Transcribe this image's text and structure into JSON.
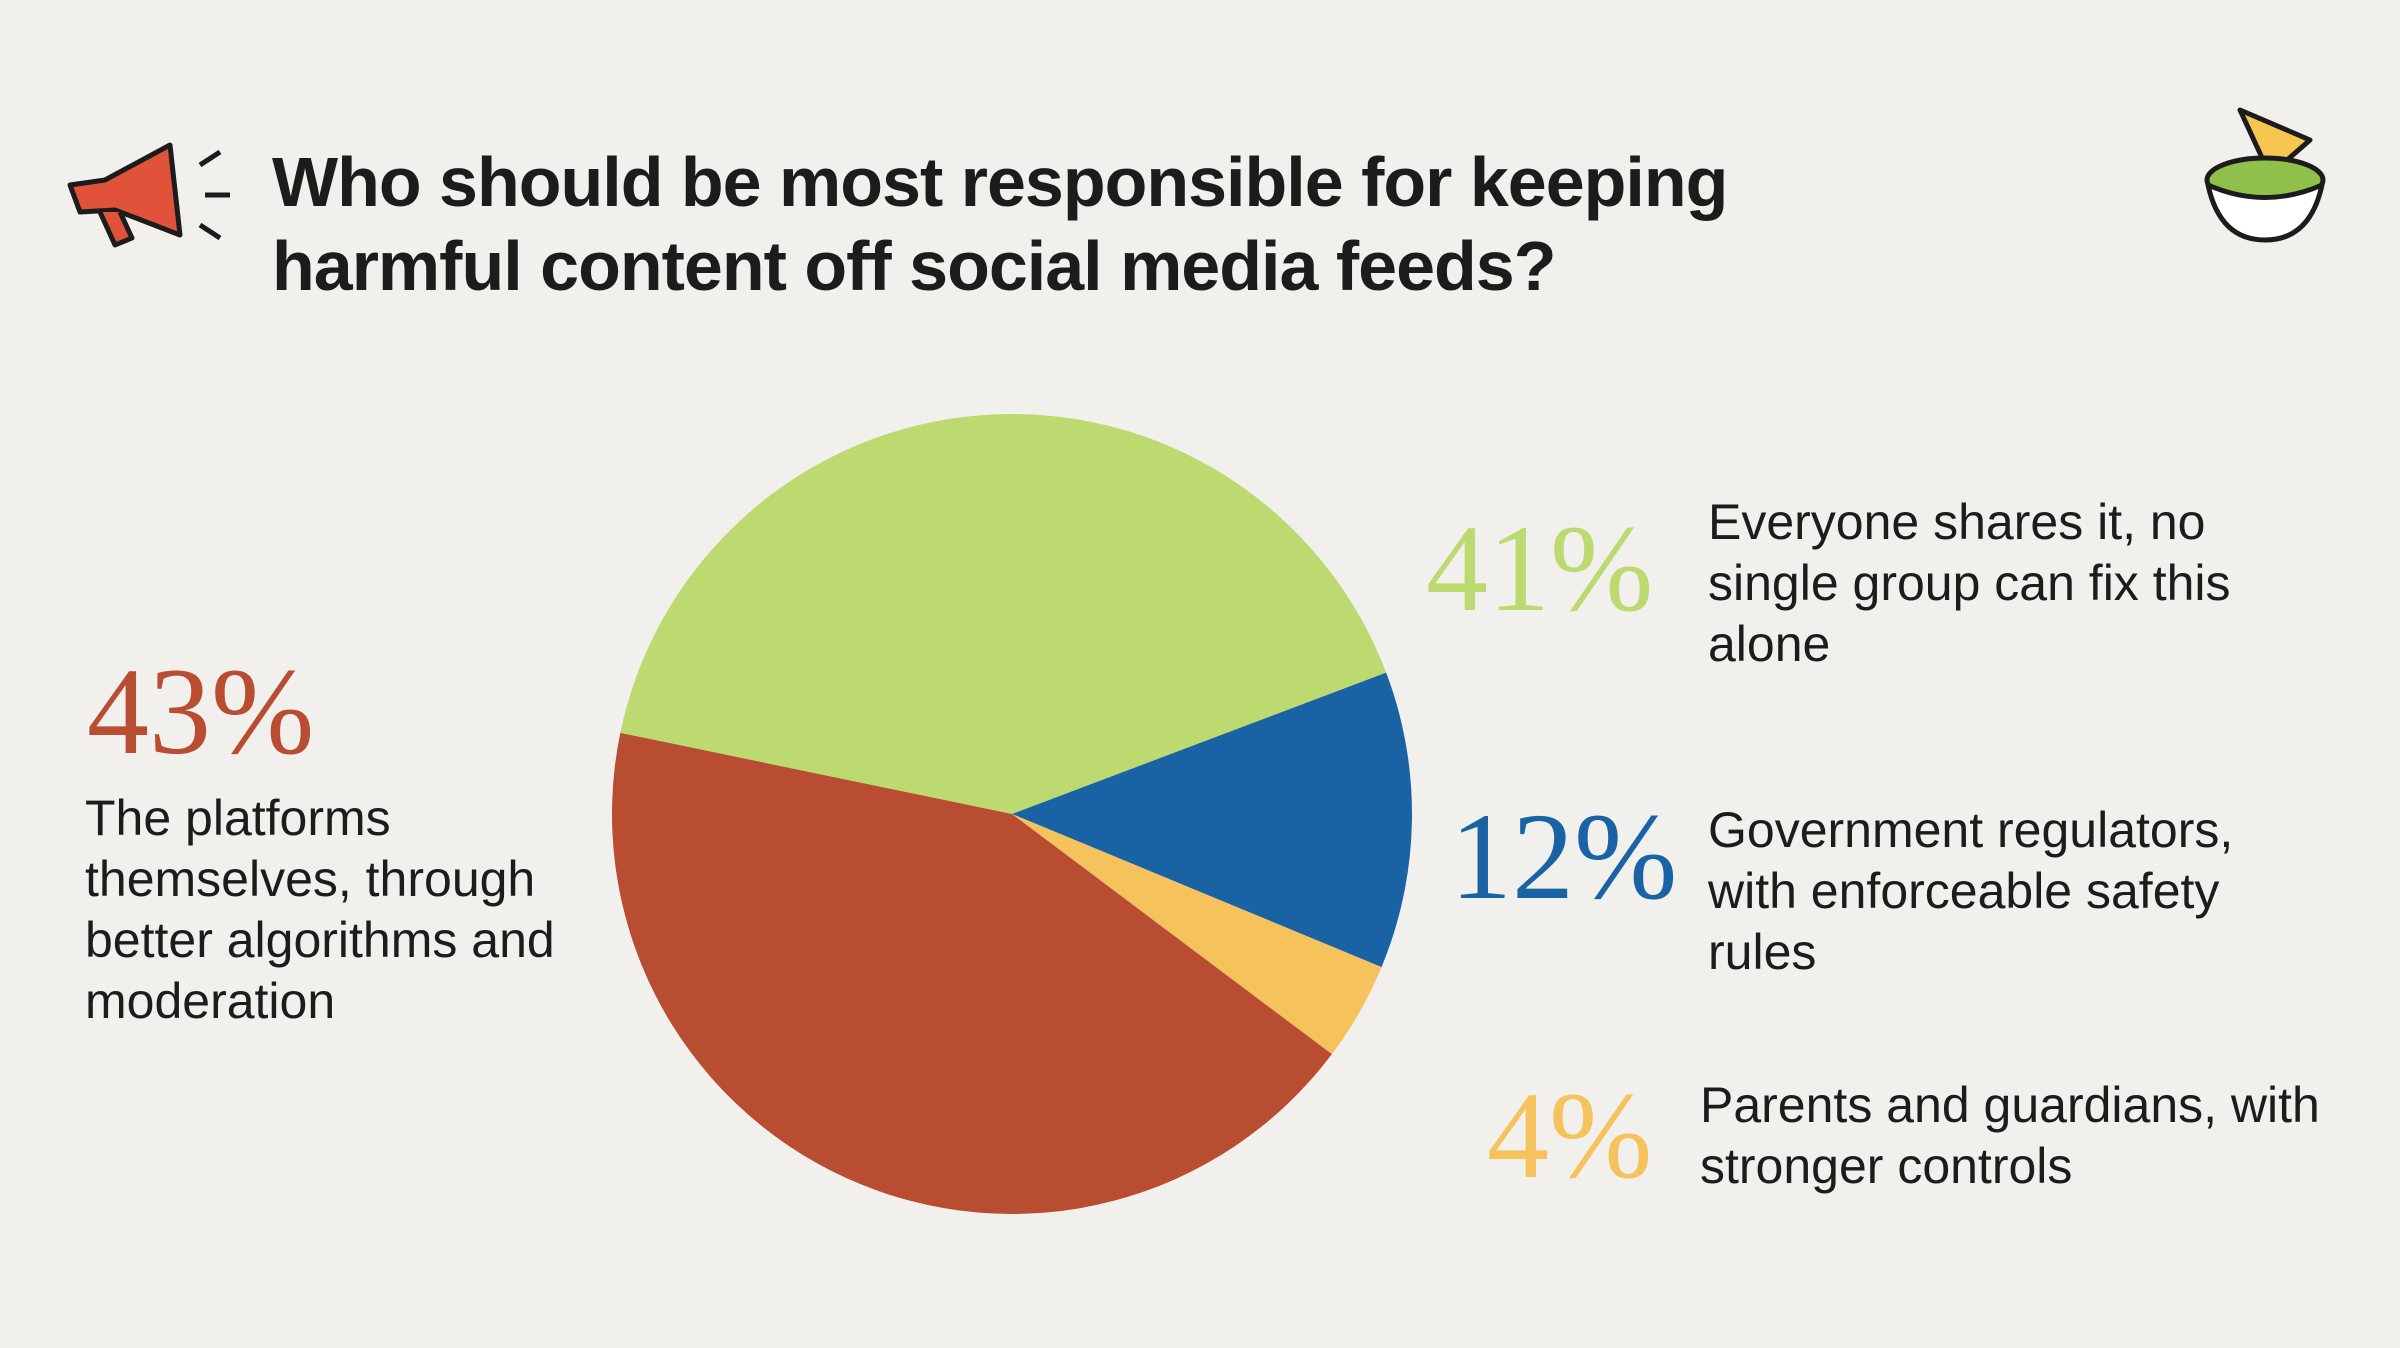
{
  "chart_data": {
    "type": "pie",
    "title": "Who should be most responsible for keeping harmful content off social media feeds?",
    "categories": [
      "Everyone shares it, no single group can fix this alone",
      "Government regulators, with enforceable safety rules",
      "Parents and guardians, with stronger controls",
      "The platforms themselves, through better algorithms and moderation"
    ],
    "values": [
      41,
      12,
      4,
      43
    ],
    "value_labels": [
      "41%",
      "12%",
      "4%",
      "43%"
    ],
    "colors": [
      "#bcda6f",
      "#1963a5",
      "#f6c25c",
      "#b84d32"
    ]
  }
}
